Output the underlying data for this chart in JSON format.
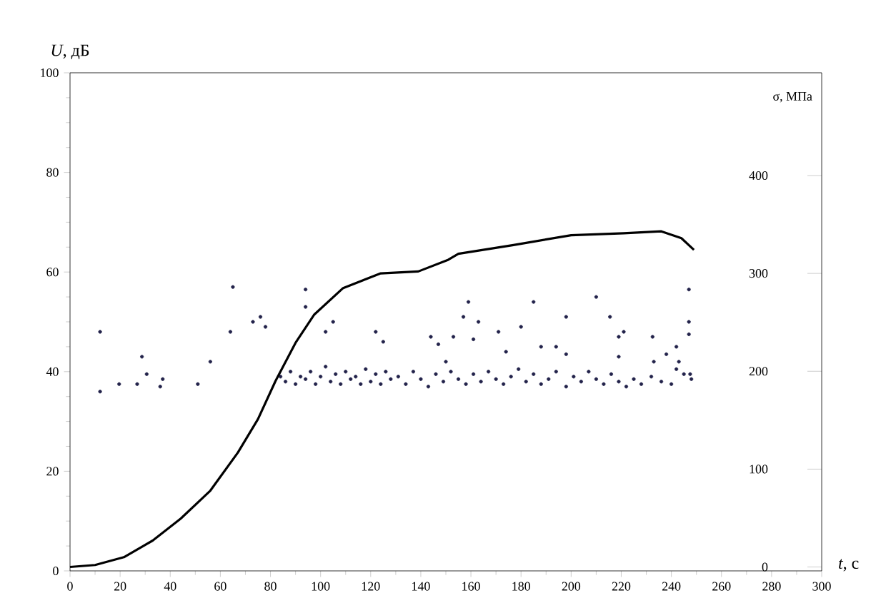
{
  "chart_data": {
    "type": "scatter",
    "xlabel": "*t*, с",
    "ylabel": "*U*, дБ",
    "y2label": "σ, МПа",
    "xlim": [
      0,
      300
    ],
    "xticks": [
      0,
      20,
      40,
      60,
      80,
      100,
      120,
      140,
      160,
      180,
      200,
      220,
      240,
      260,
      280,
      300
    ],
    "ylim": [
      0,
      100
    ],
    "yticks": [
      0,
      20,
      40,
      60,
      80,
      100
    ],
    "y2lim": [
      -4,
      505
    ],
    "y2ticks": [
      0,
      100,
      200,
      300,
      400
    ],
    "series": [
      {
        "marker": "circle",
        "color": "#22224a",
        "x": [
          12,
          12,
          19.6,
          26.8,
          28.7,
          30.6,
          36,
          37,
          51,
          56,
          65,
          64,
          73,
          76,
          78,
          94,
          94,
          105,
          102,
          122,
          125,
          144,
          147,
          159,
          185,
          210,
          247,
          157,
          198,
          215.5,
          163,
          171,
          180,
          221,
          232.5,
          247,
          247,
          219,
          161,
          153,
          188,
          174,
          194,
          198,
          238,
          242,
          219,
          243,
          233,
          247.5,
          242,
          84,
          86,
          88,
          90,
          92,
          94,
          96,
          98,
          100,
          102,
          104,
          106,
          108,
          110,
          112,
          114,
          116,
          118,
          120,
          122,
          124,
          126,
          128,
          131,
          134,
          137,
          140,
          143,
          146,
          149,
          150,
          152,
          155,
          158,
          161,
          164,
          167,
          170,
          173,
          176,
          179,
          182,
          185,
          188,
          191,
          194,
          198,
          201,
          204,
          207,
          210,
          213,
          216,
          219,
          222,
          225,
          228,
          232,
          236,
          240,
          245,
          248
        ],
        "values": [
          48,
          36,
          37.5,
          37.5,
          43,
          39.5,
          37,
          38.5,
          37.5,
          42,
          57,
          48,
          50,
          51,
          49,
          56.5,
          53,
          50,
          48,
          48,
          46,
          47,
          45.5,
          54,
          54,
          55,
          56.5,
          51,
          51,
          51,
          50,
          48,
          49,
          48,
          47,
          50,
          47.5,
          47,
          46.5,
          47,
          45,
          44,
          45,
          43.5,
          43.5,
          45,
          43,
          42,
          42,
          39.5,
          40.5,
          39,
          38,
          40,
          37.5,
          39,
          38.5,
          40,
          37.5,
          39,
          41,
          38,
          39.5,
          37.5,
          40,
          38.5,
          39,
          37.5,
          40.5,
          38,
          39.5,
          37.5,
          40,
          38.5,
          39,
          37.5,
          40,
          38.5,
          37,
          39.5,
          38,
          42,
          40,
          38.5,
          37.5,
          39.5,
          38,
          40,
          38.5,
          37.5,
          39,
          40.5,
          38,
          39.5,
          37.5,
          38.5,
          40,
          37,
          39,
          38,
          40,
          38.5,
          37.5,
          39.5,
          38,
          37,
          38.5,
          37.5,
          39,
          38,
          37.5,
          39.5,
          38.5
        ]
      },
      {
        "type": "line",
        "axis": "y2",
        "color": "#000000",
        "x": [
          0,
          10,
          21.5,
          33,
          44,
          56,
          67,
          75,
          82,
          90,
          97.5,
          109,
          124,
          139,
          151,
          155,
          177,
          200,
          221,
          236,
          244,
          249
        ],
        "values": [
          0,
          2,
          10,
          27,
          49,
          78,
          117,
          151,
          190,
          229,
          258,
          285,
          300,
          302,
          314,
          320,
          329,
          339,
          341,
          343,
          336,
          324
        ]
      }
    ]
  }
}
